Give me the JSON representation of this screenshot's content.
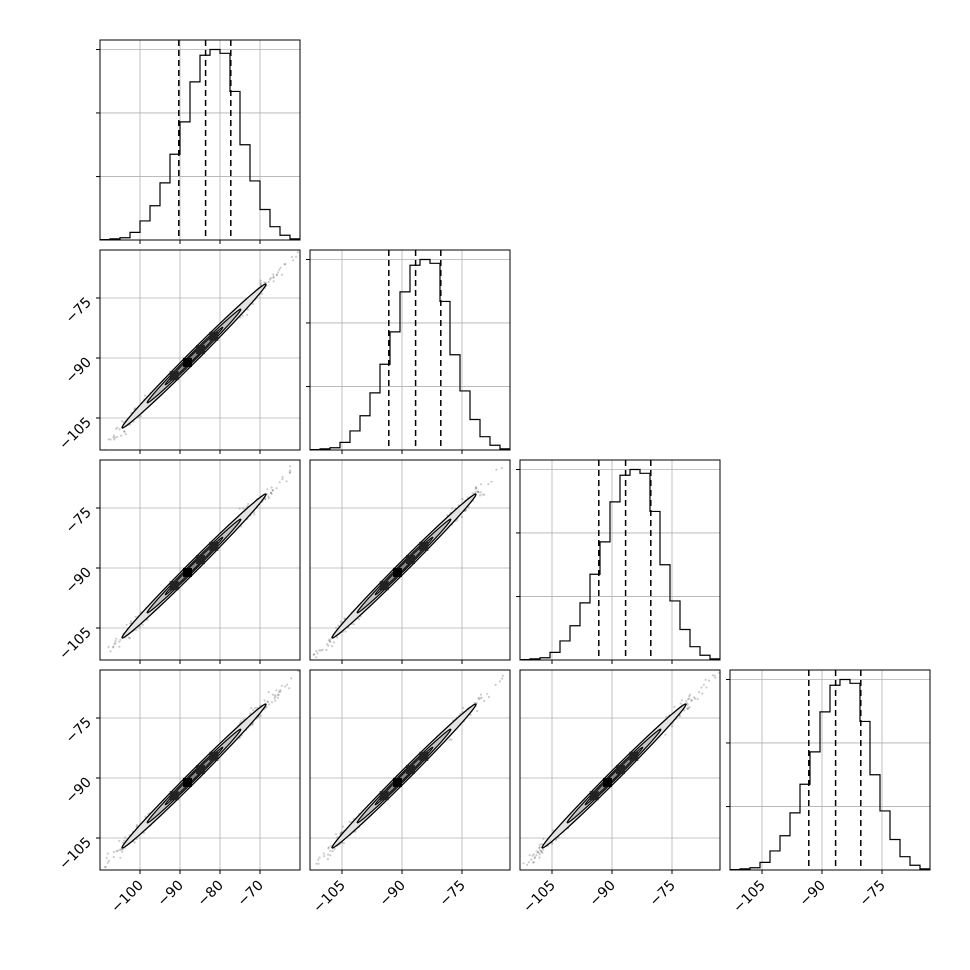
{
  "chart_data": {
    "type": "corner",
    "dims": 4,
    "ndim_labels": [
      "",
      "",
      "",
      ""
    ],
    "axis_ranges": [
      [
        -110,
        -60
      ],
      [
        -113,
        -63
      ],
      [
        -113,
        -63
      ],
      [
        -113,
        -63
      ]
    ],
    "xticks": [
      {
        "values": [
          -100,
          -90,
          -80,
          -70
        ],
        "labels": [
          "−100",
          "−90",
          "−80",
          "−70"
        ]
      },
      {
        "values": [
          -105,
          -90,
          -75
        ],
        "labels": [
          "−105",
          "−90",
          "−75"
        ]
      },
      {
        "values": [
          -105,
          -90,
          -75
        ],
        "labels": [
          "−105",
          "−90",
          "−75"
        ]
      },
      {
        "values": [
          -105,
          -90,
          -75
        ],
        "labels": [
          "−105",
          "−90",
          "−75"
        ]
      }
    ],
    "yticks": [
      {
        "values": [
          -105,
          -90,
          -75
        ],
        "labels": [
          "−105",
          "−90",
          "−75"
        ]
      },
      {
        "values": [
          -105,
          -90,
          -75
        ],
        "labels": [
          "−105",
          "−90",
          "−75"
        ]
      },
      {
        "values": [
          -105,
          -90,
          -75
        ],
        "labels": [
          "−105",
          "−90",
          "−75"
        ]
      }
    ],
    "histograms": [
      {
        "bin_start": -110,
        "bin_width": 2.5,
        "max_count": 1.05,
        "counts": [
          0.002,
          0.006,
          0.012,
          0.04,
          0.1,
          0.18,
          0.3,
          0.45,
          0.62,
          0.83,
          0.97,
          1.0,
          0.98,
          0.78,
          0.5,
          0.31,
          0.16,
          0.07,
          0.025,
          0.006
        ],
        "quantiles": [
          -90.3,
          -83.6,
          -77.3
        ]
      },
      {
        "bin_start": -113,
        "bin_width": 2.5,
        "max_count": 1.05,
        "counts": [
          0.002,
          0.006,
          0.012,
          0.04,
          0.1,
          0.18,
          0.3,
          0.45,
          0.62,
          0.83,
          0.97,
          1.0,
          0.98,
          0.78,
          0.5,
          0.31,
          0.16,
          0.07,
          0.025,
          0.006
        ],
        "quantiles": [
          -93.3,
          -86.6,
          -80.3
        ]
      },
      {
        "bin_start": -113,
        "bin_width": 2.5,
        "max_count": 1.05,
        "counts": [
          0.002,
          0.006,
          0.012,
          0.04,
          0.1,
          0.18,
          0.3,
          0.45,
          0.62,
          0.83,
          0.97,
          1.0,
          0.98,
          0.78,
          0.5,
          0.31,
          0.16,
          0.07,
          0.025,
          0.006
        ],
        "quantiles": [
          -93.3,
          -86.6,
          -80.3
        ]
      },
      {
        "bin_start": -113,
        "bin_width": 2.5,
        "max_count": 1.05,
        "counts": [
          0.002,
          0.006,
          0.012,
          0.04,
          0.1,
          0.18,
          0.3,
          0.45,
          0.62,
          0.83,
          0.97,
          1.0,
          0.98,
          0.78,
          0.5,
          0.31,
          0.16,
          0.07,
          0.025,
          0.006
        ],
        "quantiles": [
          -93.3,
          -86.6,
          -80.3
        ]
      }
    ],
    "correlation": 0.995,
    "grid": true
  }
}
